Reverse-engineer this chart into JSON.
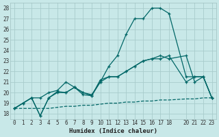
{
  "xlabel": "Humidex (Indice chaleur)",
  "bg_color": "#c8e8e8",
  "grid_color": "#a8cccc",
  "line_color": "#006666",
  "xlim": [
    -0.5,
    23.5
  ],
  "ylim": [
    17.5,
    28.5
  ],
  "xticks": [
    0,
    1,
    2,
    3,
    4,
    5,
    6,
    7,
    8,
    9,
    10,
    11,
    12,
    13,
    14,
    15,
    16,
    17,
    18,
    20,
    21,
    22,
    23
  ],
  "yticks": [
    18,
    19,
    20,
    21,
    22,
    23,
    24,
    25,
    26,
    27,
    28
  ],
  "s1_x": [
    0,
    1,
    2,
    3,
    4,
    5,
    6,
    7,
    8,
    9,
    10,
    11,
    12,
    13,
    14,
    15,
    16,
    17,
    18,
    20,
    21,
    22,
    23
  ],
  "s1_y": [
    18.5,
    19.0,
    19.5,
    19.5,
    20.0,
    20.2,
    21.0,
    20.5,
    20.0,
    19.8,
    21.0,
    22.5,
    23.5,
    25.5,
    27.0,
    27.0,
    28.0,
    28.0,
    27.5,
    21.5,
    21.5,
    21.5,
    19.5
  ],
  "s2_x": [
    0,
    1,
    2,
    3,
    4,
    5,
    6,
    7,
    8,
    9,
    10,
    11,
    12,
    13,
    14,
    15,
    16,
    17,
    18,
    20,
    21,
    22,
    23
  ],
  "s2_y": [
    18.5,
    19.0,
    19.5,
    17.8,
    19.5,
    20.1,
    20.0,
    20.5,
    20.0,
    19.7,
    21.2,
    21.5,
    21.5,
    22.0,
    22.5,
    23.0,
    23.2,
    23.2,
    23.5,
    21.0,
    21.5,
    21.5,
    19.5
  ],
  "s3_x": [
    0,
    1,
    2,
    3,
    4,
    5,
    6,
    7,
    8,
    9,
    10,
    11,
    12,
    13,
    14,
    15,
    16,
    17,
    18,
    20,
    21,
    22,
    23
  ],
  "s3_y": [
    18.5,
    19.0,
    19.5,
    17.8,
    19.5,
    20.0,
    20.0,
    20.5,
    19.8,
    19.7,
    21.0,
    21.5,
    21.5,
    22.0,
    22.5,
    23.0,
    23.2,
    23.5,
    23.2,
    23.5,
    21.0,
    21.5,
    19.5
  ],
  "s4_x": [
    0,
    3,
    4,
    5,
    6,
    7,
    8,
    9,
    10,
    11,
    12,
    13,
    14,
    15,
    16,
    17,
    18,
    20,
    21,
    22,
    23
  ],
  "s4_y": [
    18.5,
    18.5,
    18.5,
    18.6,
    18.7,
    18.7,
    18.8,
    18.8,
    18.9,
    19.0,
    19.0,
    19.1,
    19.1,
    19.2,
    19.2,
    19.3,
    19.3,
    19.4,
    19.4,
    19.5,
    19.5
  ],
  "lw": 0.9,
  "ms": 3.5
}
